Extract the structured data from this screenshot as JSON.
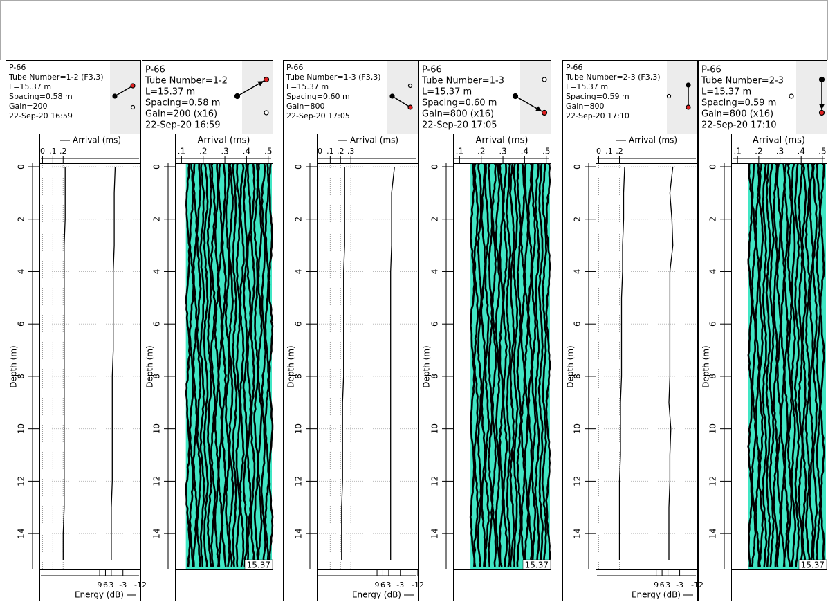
{
  "chart_data": [
    {
      "type": "line",
      "header_lines": [
        "P-66",
        "Tube Number=1-2 (F3,3)",
        "L=15.37 m",
        "Spacing=0.58 m",
        "Gain=200",
        "22-Sep-20 16:59"
      ],
      "ylabel": "Depth (m)",
      "ylim": [
        0,
        15.37
      ],
      "yticks": [
        0,
        2,
        4,
        6,
        8,
        10,
        12,
        14
      ],
      "xlim": [
        -0.03,
        0.95
      ],
      "xticks": [
        0,
        {
          "value": 0.1,
          "label": ".1"
        },
        {
          "value": 0.2,
          "label": ".2"
        }
      ],
      "x2lim": [
        40,
        -12
      ],
      "x2ticks": [
        9,
        6,
        3,
        -3,
        -12
      ],
      "grid": true,
      "depth": [
        0,
        1,
        2,
        3,
        4,
        5,
        6,
        7,
        8,
        9,
        10,
        11,
        12,
        13,
        14,
        15
      ],
      "series": [
        {
          "name": "Arrival (ms)",
          "color": "#000000",
          "values": [
            0.22,
            0.22,
            0.22,
            0.21,
            0.21,
            0.21,
            0.21,
            0.21,
            0.21,
            0.21,
            0.21,
            0.21,
            0.21,
            0.21,
            0.2,
            0.2
          ]
        },
        {
          "name": "Energy (dB)",
          "color": "#000000",
          "axis": "x2",
          "values": [
            1,
            1.5,
            1.5,
            1.5,
            2,
            2,
            2,
            2,
            2.5,
            2.5,
            2.5,
            2.5,
            2.5,
            3,
            3,
            3
          ]
        }
      ]
    },
    {
      "type": "waveform",
      "header_lines": [
        "P-66",
        "Tube Number=1-2",
        "L=15.37 m",
        "Spacing=0.58 m",
        "Gain=200 (x16)",
        "22-Sep-20 16:59"
      ],
      "ylabel": "Depth (m)",
      "ylim": [
        0,
        15.37
      ],
      "yticks": [
        0,
        2,
        4,
        6,
        8,
        10,
        12,
        14
      ],
      "xlabel": "Arrival (ms)",
      "xlim": [
        0.07,
        0.52
      ],
      "xticks": [
        {
          "value": 0.1,
          "label": ".1"
        },
        {
          "value": 0.2,
          "label": ".2"
        },
        {
          "value": 0.3,
          "label": ".3"
        },
        {
          "value": 0.4,
          "label": ".4"
        },
        {
          "value": 0.5,
          "label": ".5"
        }
      ],
      "color": "#40e6c4",
      "start": 0.12
    },
    {
      "type": "line",
      "header_lines": [
        "P-66",
        "Tube Number=1-3 (F3,3)",
        "L=15.37 m",
        "Spacing=0.60 m",
        "Gain=800",
        "22-Sep-20 17:05"
      ],
      "ylabel": "Depth (m)",
      "ylim": [
        0,
        15.37
      ],
      "yticks": [
        0,
        2,
        4,
        6,
        8,
        10,
        12,
        14
      ],
      "xlim": [
        -0.03,
        0.95
      ],
      "xticks": [
        0,
        {
          "value": 0.1,
          "label": ".1"
        },
        {
          "value": 0.2,
          "label": ".2"
        },
        {
          "value": 0.3,
          "label": ".3"
        }
      ],
      "x2lim": [
        40,
        -12
      ],
      "x2ticks": [
        9,
        6,
        3,
        -3,
        -12
      ],
      "grid": true,
      "depth": [
        0,
        1,
        2,
        3,
        4,
        5,
        6,
        7,
        8,
        9,
        10,
        11,
        12,
        13,
        14,
        15
      ],
      "series": [
        {
          "name": "Arrival (ms)",
          "color": "#000000",
          "values": [
            0.24,
            0.24,
            0.24,
            0.24,
            0.23,
            0.23,
            0.23,
            0.23,
            0.23,
            0.22,
            0.22,
            0.22,
            0.22,
            0.21,
            0.21,
            0.21
          ]
        },
        {
          "name": "Energy (dB)",
          "color": "#000000",
          "axis": "x2",
          "values": [
            0,
            1.5,
            1.5,
            1.5,
            2,
            2,
            2,
            2,
            2,
            2,
            2,
            2,
            2,
            2,
            2,
            2
          ]
        }
      ]
    },
    {
      "type": "waveform",
      "header_lines": [
        "P-66",
        "Tube Number=1-3",
        "L=15.37 m",
        "Spacing=0.60 m",
        "Gain=800 (x16)",
        "22-Sep-20 17:05"
      ],
      "ylabel": "Depth (m)",
      "ylim": [
        0,
        15.37
      ],
      "yticks": [
        0,
        2,
        4,
        6,
        8,
        10,
        12,
        14
      ],
      "xlabel": "Arrival (ms)",
      "xlim": [
        0.07,
        0.52
      ],
      "xticks": [
        {
          "value": 0.1,
          "label": ".1"
        },
        {
          "value": 0.2,
          "label": ".2"
        },
        {
          "value": 0.3,
          "label": ".3"
        },
        {
          "value": 0.4,
          "label": ".4"
        },
        {
          "value": 0.5,
          "label": ".5"
        }
      ],
      "color": "#40e6c4",
      "start": 0.15
    },
    {
      "type": "line",
      "header_lines": [
        "P-66",
        "Tube Number=2-3 (F3,3)",
        "L=15.37 m",
        "Spacing=0.59 m",
        "Gain=800",
        "22-Sep-20 17:10"
      ],
      "ylabel": "Depth (m)",
      "ylim": [
        0,
        15.37
      ],
      "yticks": [
        0,
        2,
        4,
        6,
        8,
        10,
        12,
        14
      ],
      "xlim": [
        -0.03,
        0.95
      ],
      "xticks": [
        0,
        {
          "value": 0.1,
          "label": ".1"
        },
        {
          "value": 0.2,
          "label": ".2"
        }
      ],
      "x2lim": [
        40,
        -12
      ],
      "x2ticks": [
        9,
        6,
        3,
        -3,
        -12
      ],
      "grid": true,
      "depth": [
        0,
        1,
        2,
        3,
        4,
        5,
        6,
        7,
        8,
        9,
        10,
        11,
        12,
        13,
        14,
        15
      ],
      "series": [
        {
          "name": "Arrival (ms)",
          "color": "#000000",
          "values": [
            0.25,
            0.24,
            0.24,
            0.23,
            0.23,
            0.22,
            0.22,
            0.22,
            0.22,
            0.21,
            0.21,
            0.21,
            0.2,
            0.2,
            0.2,
            0.2
          ]
        },
        {
          "name": "Energy (dB)",
          "color": "#000000",
          "axis": "x2",
          "values": [
            0.5,
            2,
            1,
            0.5,
            2,
            2,
            2,
            2,
            2,
            2.5,
            1.5,
            2,
            2,
            2.5,
            2.5,
            2.5
          ]
        }
      ]
    },
    {
      "type": "waveform",
      "header_lines": [
        "P-66",
        "Tube Number=2-3",
        "L=15.37 m",
        "Spacing=0.59 m",
        "Gain=800 (x16)",
        "22-Sep-20 17:10"
      ],
      "ylabel": "Depth (m)",
      "ylim": [
        0,
        15.37
      ],
      "yticks": [
        0,
        2,
        4,
        6,
        8,
        10,
        12,
        14
      ],
      "xlabel": "Arrival (ms)",
      "xlim": [
        0.07,
        0.52
      ],
      "xticks": [
        {
          "value": 0.1,
          "label": ".1"
        },
        {
          "value": 0.2,
          "label": ".2"
        },
        {
          "value": 0.3,
          "label": ".3"
        },
        {
          "value": 0.4,
          "label": ".4"
        },
        {
          "value": 0.5,
          "label": ".5"
        }
      ],
      "color": "#40e6c4",
      "start": 0.15
    }
  ]
}
